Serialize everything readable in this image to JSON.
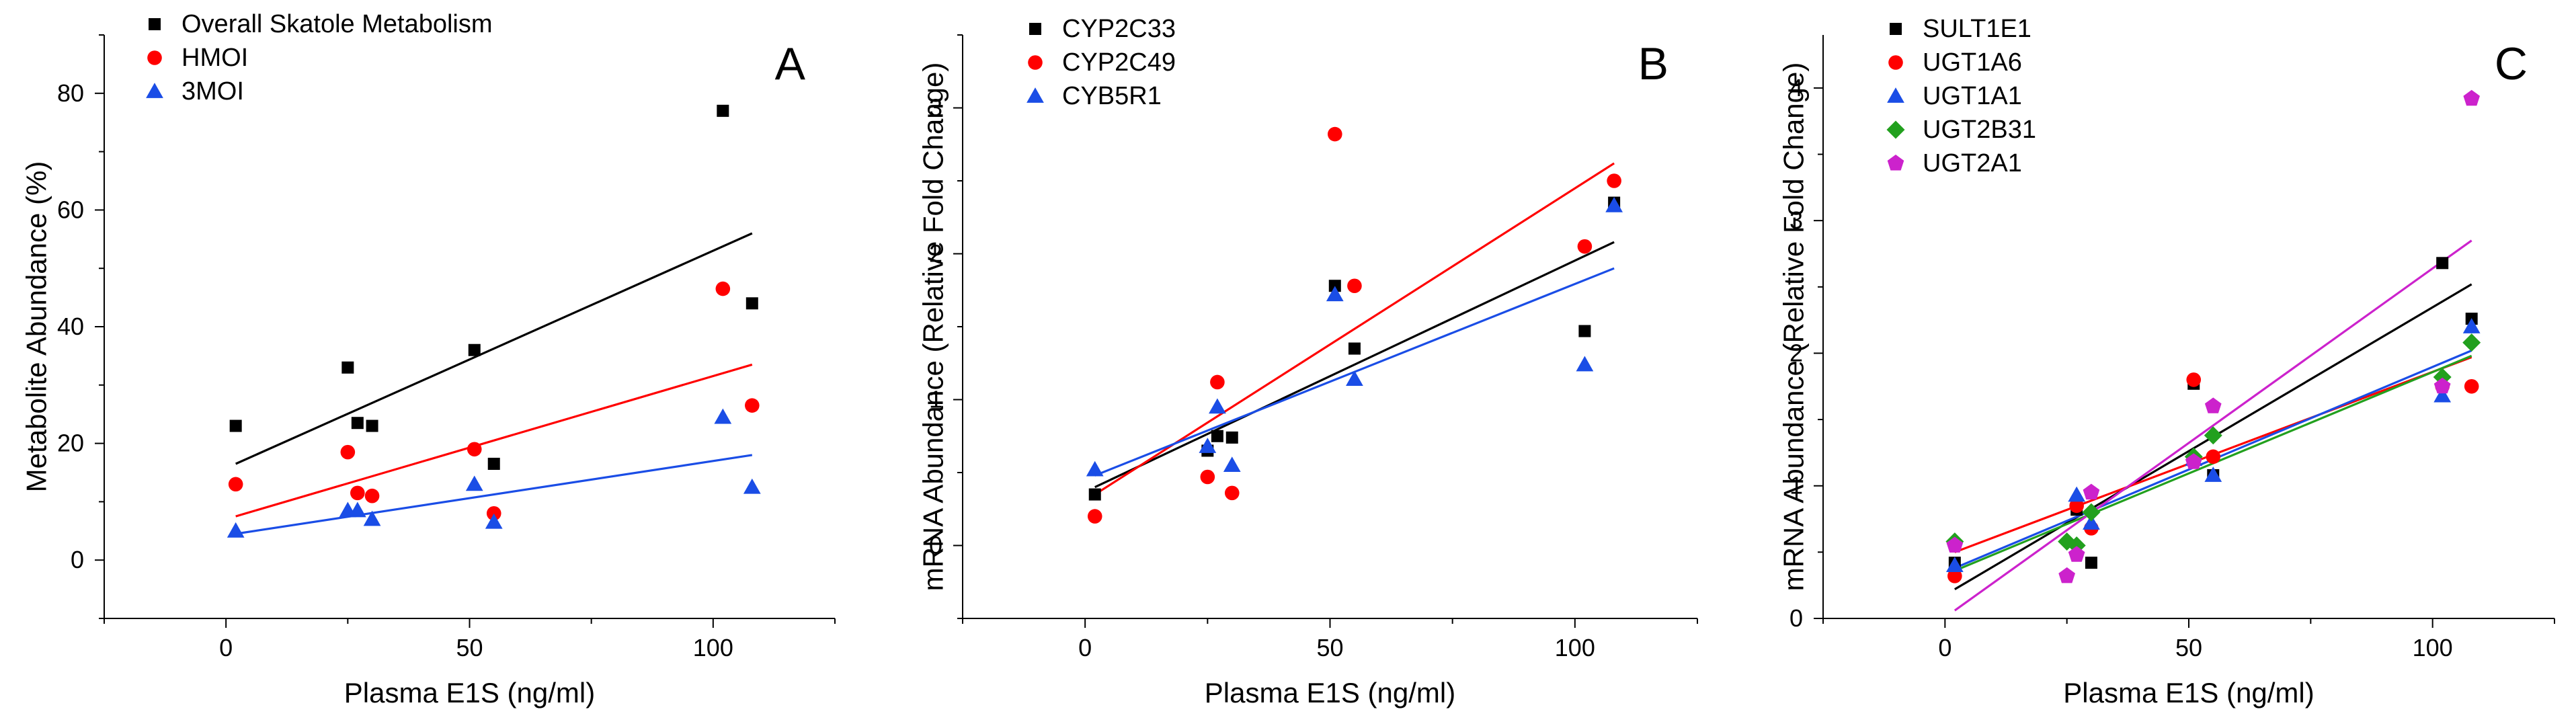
{
  "chart_data": [
    {
      "type": "scatter",
      "panel_label": "A",
      "xlabel": "Plasma E1S (ng/ml)",
      "ylabel": "Metabolite Abundance (%)",
      "xlim": [
        -25,
        125
      ],
      "ylim": [
        -10,
        90
      ],
      "xticks": [
        0,
        50,
        100
      ],
      "yticks": [
        0,
        20,
        40,
        60,
        80
      ],
      "series": [
        {
          "name": "Overall Skatole Metabolism",
          "color": "#000000",
          "marker": "square",
          "points": [
            [
              2,
              23
            ],
            [
              25,
              33
            ],
            [
              27,
              23.5
            ],
            [
              30,
              23
            ],
            [
              51,
              36
            ],
            [
              55,
              16.5
            ],
            [
              102,
              77
            ],
            [
              108,
              44
            ]
          ],
          "fit": [
            [
              2,
              16.5
            ],
            [
              108,
              56
            ]
          ]
        },
        {
          "name": "HMOI",
          "color": "#ff0000",
          "marker": "circle",
          "points": [
            [
              2,
              13
            ],
            [
              25,
              18.5
            ],
            [
              27,
              11.5
            ],
            [
              30,
              11
            ],
            [
              51,
              19
            ],
            [
              55,
              8
            ],
            [
              102,
              46.5
            ],
            [
              108,
              26.5
            ]
          ],
          "fit": [
            [
              2,
              7.5
            ],
            [
              108,
              33.5
            ]
          ]
        },
        {
          "name": "3MOI",
          "color": "#1a4de6",
          "marker": "triangle",
          "points": [
            [
              2,
              5
            ],
            [
              25,
              8.5
            ],
            [
              27,
              8.5
            ],
            [
              30,
              7
            ],
            [
              51,
              13
            ],
            [
              55,
              6.5
            ],
            [
              102,
              24.5
            ],
            [
              108,
              12.5
            ]
          ],
          "fit": [
            [
              2,
              4.5
            ],
            [
              108,
              18
            ]
          ]
        }
      ]
    },
    {
      "type": "scatter",
      "panel_label": "B",
      "xlabel": "Plasma E1S (ng/ml)",
      "ylabel": "mRNA Abundance (Relative Fold Change)",
      "xlim": [
        -25,
        125
      ],
      "ylim": [
        -0.5,
        3.5
      ],
      "xticks": [
        0,
        50,
        100
      ],
      "yticks": [
        0,
        1,
        2,
        3
      ],
      "series": [
        {
          "name": "CYP2C33",
          "color": "#000000",
          "marker": "square",
          "points": [
            [
              2,
              0.35
            ],
            [
              25,
              0.65
            ],
            [
              27,
              0.75
            ],
            [
              30,
              0.74
            ],
            [
              51,
              1.78
            ],
            [
              55,
              1.35
            ],
            [
              102,
              1.47
            ],
            [
              108,
              2.35
            ]
          ],
          "fit": [
            [
              2,
              0.4
            ],
            [
              108,
              2.08
            ]
          ]
        },
        {
          "name": "CYP2C49",
          "color": "#ff0000",
          "marker": "circle",
          "points": [
            [
              2,
              0.2
            ],
            [
              25,
              0.47
            ],
            [
              27,
              1.12
            ],
            [
              30,
              0.36
            ],
            [
              51,
              2.82
            ],
            [
              55,
              1.78
            ],
            [
              102,
              2.05
            ],
            [
              108,
              2.5
            ]
          ],
          "fit": [
            [
              2,
              0.35
            ],
            [
              108,
              2.62
            ]
          ]
        },
        {
          "name": "CYB5R1",
          "color": "#1a4de6",
          "marker": "triangle",
          "points": [
            [
              2,
              0.52
            ],
            [
              25,
              0.68
            ],
            [
              27,
              0.95
            ],
            [
              30,
              0.55
            ],
            [
              51,
              1.72
            ],
            [
              55,
              1.14
            ],
            [
              102,
              1.24
            ],
            [
              108,
              2.33
            ]
          ],
          "fit": [
            [
              2,
              0.48
            ],
            [
              108,
              1.9
            ]
          ]
        }
      ]
    },
    {
      "type": "scatter",
      "panel_label": "C",
      "xlabel": "Plasma E1S (ng/ml)",
      "ylabel": "mRNA Abundance (Relative Fold Change)",
      "xlim": [
        -25,
        125
      ],
      "ylim": [
        0,
        4.4
      ],
      "xticks": [
        0,
        50,
        100
      ],
      "yticks": [
        0,
        1,
        2,
        3,
        4
      ],
      "series": [
        {
          "name": "SULT1E1",
          "color": "#000000",
          "marker": "square",
          "points": [
            [
              2,
              0.42
            ],
            [
              27,
              0.82
            ],
            [
              30,
              0.42
            ],
            [
              51,
              1.77
            ],
            [
              55,
              1.08
            ],
            [
              102,
              2.68
            ],
            [
              108,
              2.26
            ]
          ],
          "fit": [
            [
              2,
              0.22
            ],
            [
              108,
              2.52
            ]
          ]
        },
        {
          "name": "UGT1A6",
          "color": "#ff0000",
          "marker": "circle",
          "points": [
            [
              2,
              0.32
            ],
            [
              27,
              0.85
            ],
            [
              30,
              0.68
            ],
            [
              51,
              1.8
            ],
            [
              55,
              1.22
            ],
            [
              102,
              1.75
            ],
            [
              108,
              1.75
            ]
          ],
          "fit": [
            [
              2,
              0.5
            ],
            [
              108,
              1.97
            ]
          ]
        },
        {
          "name": "UGT1A1",
          "color": "#1a4de6",
          "marker": "triangle",
          "points": [
            [
              2,
              0.4
            ],
            [
              27,
              0.93
            ],
            [
              30,
              0.72
            ],
            [
              51,
              1.2
            ],
            [
              55,
              1.08
            ],
            [
              102,
              1.68
            ],
            [
              108,
              2.2
            ]
          ],
          "fit": [
            [
              2,
              0.38
            ],
            [
              108,
              2.02
            ]
          ]
        },
        {
          "name": "UGT2B31",
          "color": "#22a01e",
          "marker": "diamond",
          "points": [
            [
              2,
              0.58
            ],
            [
              25,
              0.58
            ],
            [
              27,
              0.55
            ],
            [
              30,
              0.8
            ],
            [
              51,
              1.22
            ],
            [
              55,
              1.38
            ],
            [
              102,
              1.82
            ],
            [
              108,
              2.08
            ]
          ],
          "fit": [
            [
              2,
              0.36
            ],
            [
              108,
              1.98
            ]
          ]
        },
        {
          "name": "UGT2A1",
          "color": "#cc22cc",
          "marker": "pentagon",
          "points": [
            [
              2,
              0.55
            ],
            [
              25,
              0.32
            ],
            [
              27,
              0.48
            ],
            [
              30,
              0.95
            ],
            [
              51,
              1.18
            ],
            [
              55,
              1.6
            ],
            [
              102,
              1.75
            ],
            [
              108,
              3.92
            ]
          ],
          "fit": [
            [
              2,
              0.06
            ],
            [
              108,
              2.85
            ]
          ]
        }
      ]
    }
  ]
}
